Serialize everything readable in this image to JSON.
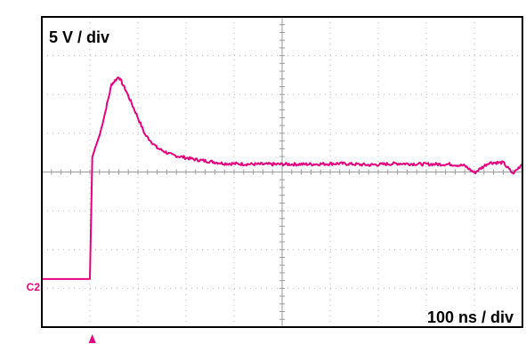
{
  "chart_data": {
    "type": "line",
    "vertical_scale_label": "5 V / div",
    "horizontal_scale_label": "100 ns / div",
    "channel_label": "C2",
    "grid": true,
    "x_divisions": 10,
    "y_divisions": 8,
    "x_unit": "ns",
    "y_unit": "V",
    "xlim": [
      0,
      1000
    ],
    "ylim": [
      -22.5,
      17.5
    ],
    "trace_color": "#e6007e",
    "channel_label_color": "#e6007e",
    "trigger_marker_color": "#e6007e",
    "trigger_time": 105,
    "series": [
      {
        "name": "C2",
        "x": [
          0,
          100,
          105,
          112,
          120,
          130,
          145,
          160,
          175,
          195,
          215,
          240,
          270,
          320,
          380,
          440,
          500,
          560,
          620,
          680,
          740,
          800,
          850,
          880,
          900,
          930,
          960,
          980,
          990,
          1000
        ],
        "y": [
          -16.3,
          -16.3,
          -0.6,
          0.8,
          2.2,
          4.7,
          8.8,
          9.8,
          8.0,
          5.2,
          2.3,
          0.6,
          -0.3,
          -0.9,
          -1.4,
          -1.5,
          -1.5,
          -1.5,
          -1.4,
          -1.6,
          -1.4,
          -1.5,
          -1.5,
          -1.7,
          -2.6,
          -1.3,
          -1.3,
          -2.7,
          -2.1,
          -1.4
        ]
      }
    ]
  }
}
